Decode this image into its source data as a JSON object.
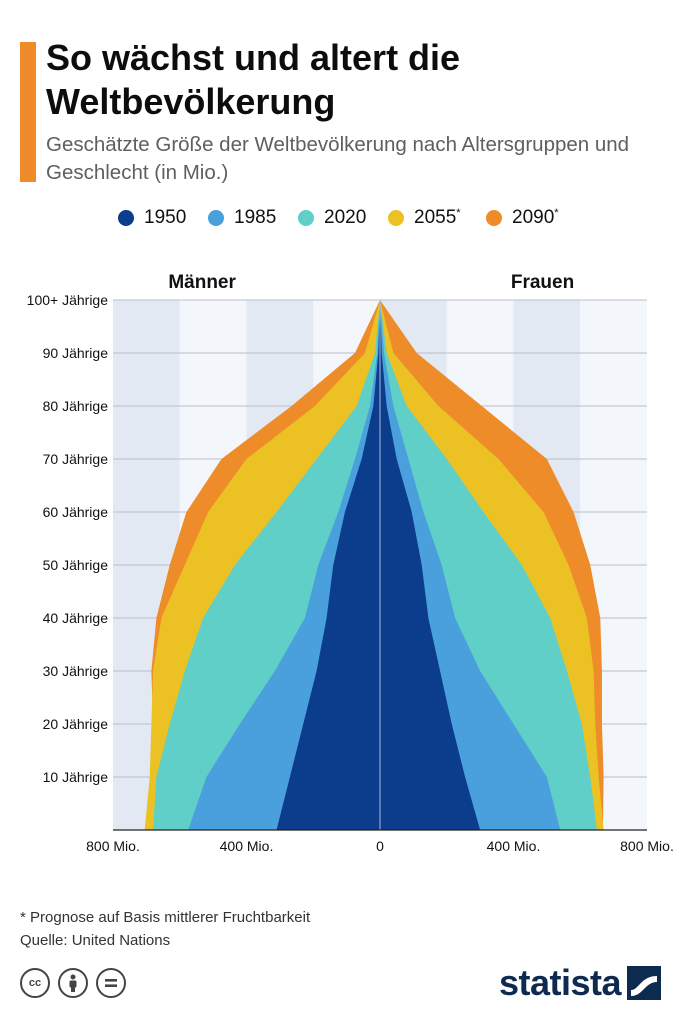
{
  "header": {
    "title": "So wächst und altert die Weltbevölkerung",
    "subtitle": "Geschätzte Größe der Weltbevölkerung nach Altersgruppen und Geschlecht (in Mio.)"
  },
  "legend": [
    {
      "label": "1950",
      "star": false,
      "color": "#0b3d8c"
    },
    {
      "label": "1985",
      "star": false,
      "color": "#4aa0dc"
    },
    {
      "label": "2020",
      "star": false,
      "color": "#5fcfc8"
    },
    {
      "label": "2055",
      "star": true,
      "color": "#ecc124"
    },
    {
      "label": "2090",
      "star": true,
      "color": "#ef8c2a"
    }
  ],
  "footer": {
    "note": "* Prognose auf Basis mittlerer Fruchtbarkeit",
    "source": "Quelle: United Nations",
    "brand": "statista",
    "license_icons": [
      "cc",
      "by-icon",
      "nd-icon"
    ]
  },
  "chart_data": {
    "type": "area",
    "subtype": "population-pyramid",
    "sides": [
      "Männer",
      "Frauen"
    ],
    "x_unit": "Mio.",
    "xlim": [
      -800,
      800
    ],
    "x_ticks": [
      {
        "value": -800,
        "label": "800 Mio."
      },
      {
        "value": -400,
        "label": "400 Mio."
      },
      {
        "value": 0,
        "label": "0"
      },
      {
        "value": 400,
        "label": "400 Mio."
      },
      {
        "value": 800,
        "label": "800 Mio."
      }
    ],
    "y_ticks": [
      {
        "value": 100,
        "label": "100+ Jährige"
      },
      {
        "value": 90,
        "label": "90 Jährige"
      },
      {
        "value": 80,
        "label": "80 Jährige"
      },
      {
        "value": 70,
        "label": "70 Jährige"
      },
      {
        "value": 60,
        "label": "60 Jährige"
      },
      {
        "value": 50,
        "label": "50 Jährige"
      },
      {
        "value": 40,
        "label": "40 Jährige"
      },
      {
        "value": 30,
        "label": "30 Jährige"
      },
      {
        "value": 20,
        "label": "20 Jährige"
      },
      {
        "value": 10,
        "label": "10 Jährige"
      }
    ],
    "ages": [
      0,
      10,
      20,
      30,
      40,
      50,
      60,
      70,
      80,
      90,
      100
    ],
    "series": [
      {
        "name": "2090",
        "color": "#ef8c2a",
        "male": [
          690,
          680,
          680,
          685,
          670,
          630,
          580,
          475,
          265,
          75,
          0
        ],
        "female": [
          668,
          670,
          665,
          665,
          660,
          630,
          580,
          500,
          305,
          110,
          0
        ]
      },
      {
        "name": "2055",
        "color": "#ecc124",
        "male": [
          705,
          690,
          685,
          680,
          655,
          585,
          515,
          400,
          195,
          45,
          0
        ],
        "female": [
          670,
          655,
          645,
          640,
          620,
          565,
          490,
          355,
          175,
          40,
          0
        ]
      },
      {
        "name": "2020",
        "color": "#5fcfc8",
        "male": [
          680,
          670,
          630,
          585,
          530,
          435,
          310,
          190,
          70,
          15,
          0
        ],
        "female": [
          650,
          630,
          605,
          560,
          510,
          425,
          310,
          200,
          80,
          20,
          0
        ]
      },
      {
        "name": "1985",
        "color": "#4aa0dc",
        "male": [
          575,
          520,
          420,
          315,
          225,
          185,
          125,
          75,
          30,
          8,
          0
        ],
        "female": [
          540,
          500,
          400,
          300,
          225,
          185,
          130,
          85,
          40,
          12,
          0
        ]
      },
      {
        "name": "1950",
        "color": "#0b3d8c",
        "male": [
          310,
          270,
          230,
          190,
          160,
          140,
          105,
          55,
          20,
          5,
          0
        ],
        "female": [
          300,
          255,
          215,
          180,
          145,
          125,
          95,
          50,
          20,
          5,
          0
        ]
      }
    ]
  }
}
